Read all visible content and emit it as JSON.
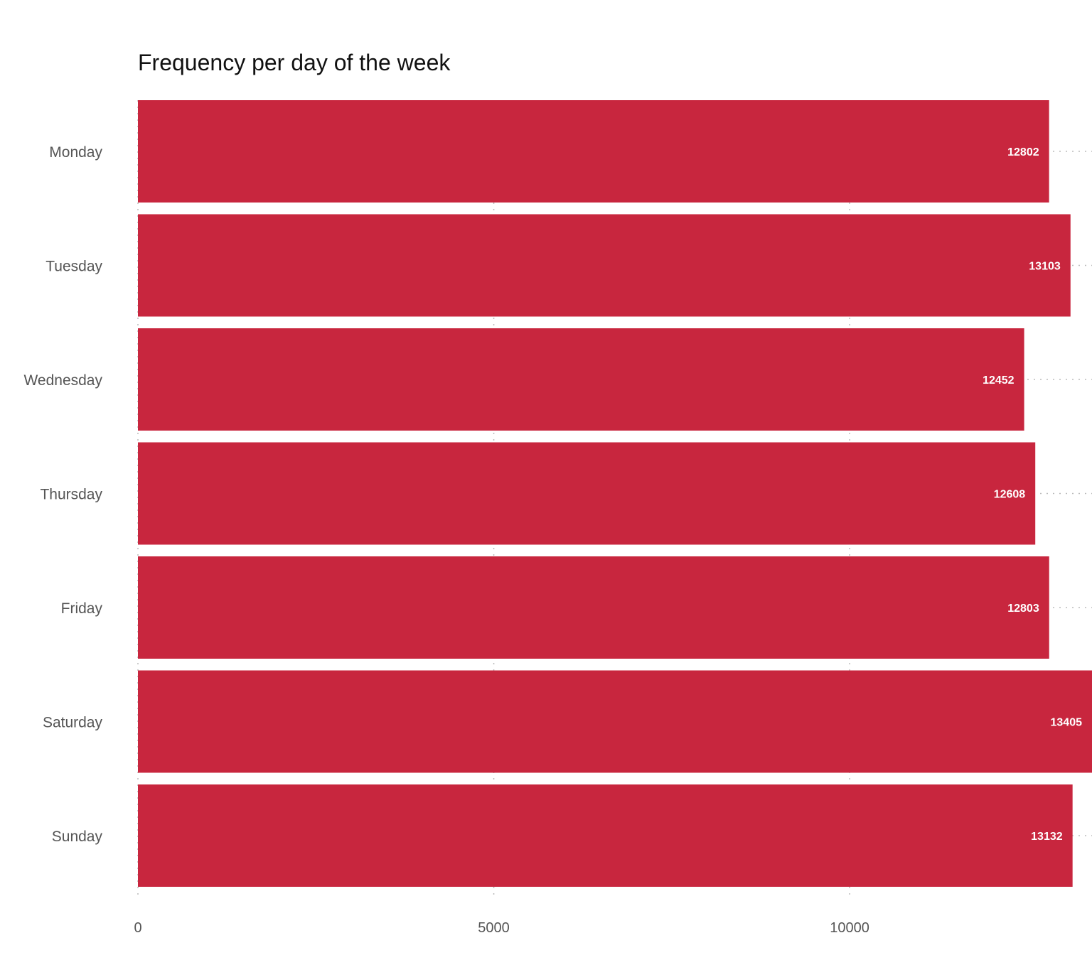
{
  "chart_data": {
    "type": "bar",
    "orientation": "horizontal",
    "title": "Frequency per day of the week",
    "xlabel": "",
    "ylabel": "",
    "categories": [
      "Monday",
      "Tuesday",
      "Wednesday",
      "Thursday",
      "Friday",
      "Saturday",
      "Sunday"
    ],
    "values": [
      12802,
      13103,
      12452,
      12608,
      12803,
      13405,
      13132
    ],
    "xlim": [
      0,
      13405
    ],
    "xticks": [
      0,
      5000,
      10000
    ],
    "grid": "dotted vertical and horizontal",
    "bar_color": "#c8263e",
    "data_labels": "inside bar end"
  }
}
